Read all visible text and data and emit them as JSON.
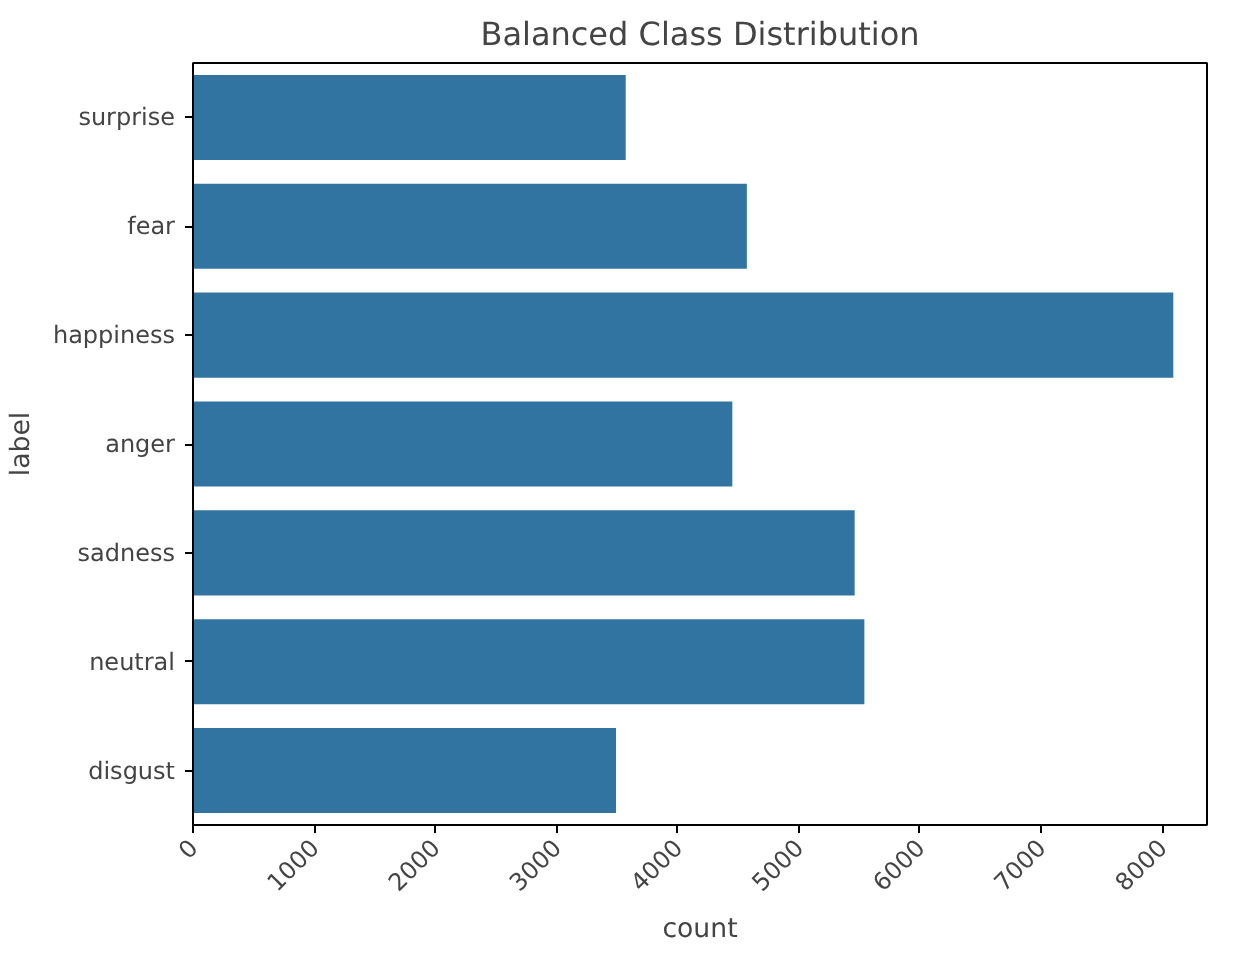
{
  "chart_data": {
    "type": "bar",
    "orientation": "horizontal",
    "title": "Balanced Class Distribution",
    "xlabel": "count",
    "ylabel": "label",
    "categories": [
      "surprise",
      "fear",
      "happiness",
      "anger",
      "sadness",
      "neutral",
      "disgust"
    ],
    "values": [
      3580,
      4580,
      8100,
      4460,
      5470,
      5550,
      3500
    ],
    "color": "#3274a1",
    "xlim": [
      0,
      8370
    ],
    "xticks": [
      0,
      1000,
      2000,
      3000,
      4000,
      5000,
      6000,
      7000,
      8000
    ],
    "grid": false
  }
}
